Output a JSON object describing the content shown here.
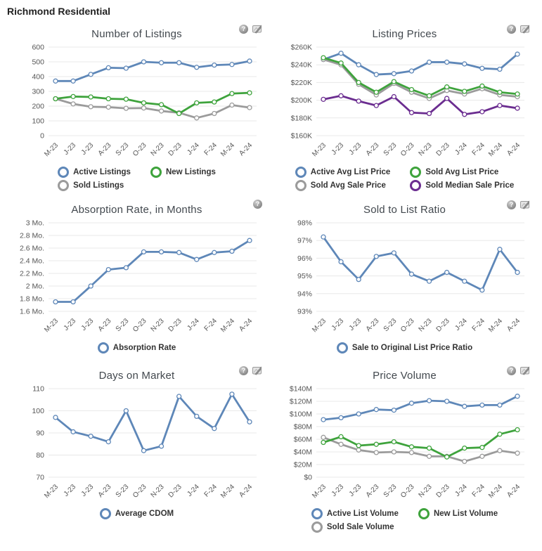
{
  "page": {
    "title": "Richmond Residential"
  },
  "icon_names": [
    "help-icon",
    "chart-tools-icon"
  ],
  "colors": {
    "blue": "#5e87b8",
    "green": "#3ea33c",
    "gray": "#9b9b9b",
    "purple": "#6b2d90",
    "gridline": "#e8e8e8",
    "axis_text": "#555555",
    "title_text": "#42484e",
    "legend_text": "#333333"
  },
  "chart_data": [
    {
      "id": "number-of-listings",
      "type": "line",
      "title": "Number of Listings",
      "icons": [
        "help",
        "tools"
      ],
      "legend_position": "bottom",
      "grid": true,
      "categories": [
        "M-23",
        "J-23",
        "J-23",
        "A-23",
        "S-23",
        "O-23",
        "N-23",
        "D-23",
        "J-24",
        "F-24",
        "M-24",
        "A-24"
      ],
      "ylim": [
        0,
        600
      ],
      "yticks": [
        {
          "value": 600,
          "label": "600"
        },
        {
          "value": 500,
          "label": "500"
        },
        {
          "value": 400,
          "label": "400"
        },
        {
          "value": 300,
          "label": "300"
        },
        {
          "value": 200,
          "label": "200"
        },
        {
          "value": 100,
          "label": "100"
        },
        {
          "value": 0,
          "label": "0"
        }
      ],
      "draw_order": [
        0,
        2,
        1
      ],
      "series": [
        {
          "name": "Active Listings",
          "color": "#5e87b8",
          "values": [
            370,
            370,
            415,
            460,
            457,
            500,
            494,
            494,
            463,
            478,
            482,
            505
          ]
        },
        {
          "name": "New Listings",
          "color": "#3ea33c",
          "values": [
            250,
            265,
            262,
            250,
            247,
            222,
            210,
            150,
            222,
            228,
            285,
            290
          ]
        },
        {
          "name": "Sold Listings",
          "color": "#9b9b9b",
          "values": [
            250,
            215,
            196,
            193,
            185,
            187,
            167,
            155,
            120,
            150,
            207,
            190
          ]
        }
      ]
    },
    {
      "id": "listing-prices",
      "type": "line",
      "title": "Listing Prices",
      "icons": [
        "help",
        "tools"
      ],
      "legend_position": "bottom",
      "grid": true,
      "categories": [
        "M-23",
        "J-23",
        "J-23",
        "A-23",
        "S-23",
        "O-23",
        "N-23",
        "D-23",
        "J-24",
        "F-24",
        "M-24",
        "A-24"
      ],
      "ylim": [
        160,
        260
      ],
      "yticks": [
        {
          "value": 260,
          "label": "$260K"
        },
        {
          "value": 240,
          "label": "$240K"
        },
        {
          "value": 220,
          "label": "$220K"
        },
        {
          "value": 200,
          "label": "$200K"
        },
        {
          "value": 180,
          "label": "$180K"
        },
        {
          "value": 160,
          "label": "$160K"
        }
      ],
      "draw_order": [
        0,
        2,
        1,
        3
      ],
      "series": [
        {
          "name": "Active Avg List Price",
          "color": "#5e87b8",
          "values": [
            246,
            253,
            240,
            229,
            230,
            233,
            243,
            243,
            241,
            236,
            235,
            252
          ]
        },
        {
          "name": "Sold Avg List Price",
          "color": "#3ea33c",
          "values": [
            248,
            242,
            220,
            209,
            221,
            212,
            205,
            215,
            210,
            216,
            209,
            207
          ]
        },
        {
          "name": "Sold Avg Sale Price",
          "color": "#9b9b9b",
          "values": [
            246,
            240,
            218,
            206,
            219,
            209,
            202,
            211,
            207,
            213,
            206,
            204
          ]
        },
        {
          "name": "Sold Median Sale Price",
          "color": "#6b2d90",
          "values": [
            201,
            205,
            199,
            194,
            204,
            186,
            185,
            202,
            184,
            187,
            194,
            191
          ]
        }
      ]
    },
    {
      "id": "absorption-rate",
      "type": "line",
      "title": "Absorption Rate, in Months",
      "icons": [
        "help"
      ],
      "legend_position": "bottom",
      "grid": true,
      "categories": [
        "M-23",
        "J-23",
        "J-23",
        "A-23",
        "S-23",
        "O-23",
        "N-23",
        "D-23",
        "J-24",
        "F-24",
        "M-24",
        "A-24"
      ],
      "ylim": [
        1.6,
        3.0
      ],
      "yticks": [
        {
          "value": 3.0,
          "label": "3 Mo."
        },
        {
          "value": 2.8,
          "label": "2.8 Mo."
        },
        {
          "value": 2.6,
          "label": "2.6 Mo."
        },
        {
          "value": 2.4,
          "label": "2.4 Mo."
        },
        {
          "value": 2.2,
          "label": "2.2 Mo."
        },
        {
          "value": 2.0,
          "label": "2 Mo."
        },
        {
          "value": 1.8,
          "label": "1.8 Mo."
        },
        {
          "value": 1.6,
          "label": "1.6 Mo."
        }
      ],
      "draw_order": [
        0
      ],
      "series": [
        {
          "name": "Absorption Rate",
          "color": "#5e87b8",
          "values": [
            1.75,
            1.75,
            2.0,
            2.26,
            2.29,
            2.54,
            2.54,
            2.53,
            2.42,
            2.53,
            2.55,
            2.72
          ]
        }
      ]
    },
    {
      "id": "sold-to-list-ratio",
      "type": "line",
      "title": "Sold to List Ratio",
      "icons": [
        "help",
        "tools"
      ],
      "legend_position": "bottom",
      "grid": true,
      "categories": [
        "M-23",
        "J-23",
        "J-23",
        "A-23",
        "S-23",
        "O-23",
        "N-23",
        "D-23",
        "J-24",
        "F-24",
        "M-24",
        "A-24"
      ],
      "ylim": [
        93,
        98
      ],
      "yticks": [
        {
          "value": 98,
          "label": "98%"
        },
        {
          "value": 97,
          "label": "97%"
        },
        {
          "value": 96,
          "label": "96%"
        },
        {
          "value": 95,
          "label": "95%"
        },
        {
          "value": 94,
          "label": "94%"
        },
        {
          "value": 93,
          "label": "93%"
        }
      ],
      "draw_order": [
        0
      ],
      "series": [
        {
          "name": "Sale to Original List Price Ratio",
          "color": "#5e87b8",
          "values": [
            97.2,
            95.8,
            94.8,
            96.1,
            96.3,
            95.1,
            94.7,
            95.2,
            94.7,
            94.2,
            96.5,
            95.2
          ]
        }
      ]
    },
    {
      "id": "days-on-market",
      "type": "line",
      "title": "Days on Market",
      "icons": [
        "help",
        "tools"
      ],
      "legend_position": "bottom",
      "grid": true,
      "categories": [
        "M-23",
        "J-23",
        "J-23",
        "A-23",
        "S-23",
        "O-23",
        "N-23",
        "D-23",
        "J-24",
        "F-24",
        "M-24",
        "A-24"
      ],
      "ylim": [
        70,
        110
      ],
      "yticks": [
        {
          "value": 110,
          "label": "110"
        },
        {
          "value": 100,
          "label": "100"
        },
        {
          "value": 90,
          "label": "90"
        },
        {
          "value": 80,
          "label": "80"
        },
        {
          "value": 70,
          "label": "70"
        }
      ],
      "draw_order": [
        0
      ],
      "series": [
        {
          "name": "Average CDOM",
          "color": "#5e87b8",
          "values": [
            97,
            90.5,
            88.5,
            86,
            100,
            82,
            84,
            106.5,
            97.5,
            92,
            107.5,
            95
          ]
        }
      ]
    },
    {
      "id": "price-volume",
      "type": "line",
      "title": "Price Volume",
      "icons": [
        "help",
        "tools"
      ],
      "legend_position": "bottom",
      "grid": true,
      "categories": [
        "M-23",
        "J-23",
        "J-23",
        "A-23",
        "S-23",
        "O-23",
        "N-23",
        "D-23",
        "J-24",
        "F-24",
        "M-24",
        "A-24"
      ],
      "ylim": [
        0,
        140
      ],
      "yticks": [
        {
          "value": 140,
          "label": "$140M"
        },
        {
          "value": 120,
          "label": "$120M"
        },
        {
          "value": 100,
          "label": "$100M"
        },
        {
          "value": 80,
          "label": "$80M"
        },
        {
          "value": 60,
          "label": "$60M"
        },
        {
          "value": 40,
          "label": "$40M"
        },
        {
          "value": 20,
          "label": "$20M"
        },
        {
          "value": 0,
          "label": "$0"
        }
      ],
      "draw_order": [
        0,
        2,
        1
      ],
      "series": [
        {
          "name": "Active List Volume",
          "color": "#5e87b8",
          "values": [
            91,
            94,
            100,
            107,
            106,
            117,
            121,
            120,
            112,
            114,
            114,
            128
          ]
        },
        {
          "name": "New List Volume",
          "color": "#3ea33c",
          "values": [
            55,
            64,
            50,
            52,
            56,
            48,
            46,
            32,
            46,
            47,
            68,
            75
          ]
        },
        {
          "name": "Sold Sale Volume",
          "color": "#9b9b9b",
          "values": [
            63,
            52,
            43,
            39,
            40,
            39,
            33,
            33,
            25,
            33,
            42,
            38
          ]
        }
      ]
    }
  ]
}
